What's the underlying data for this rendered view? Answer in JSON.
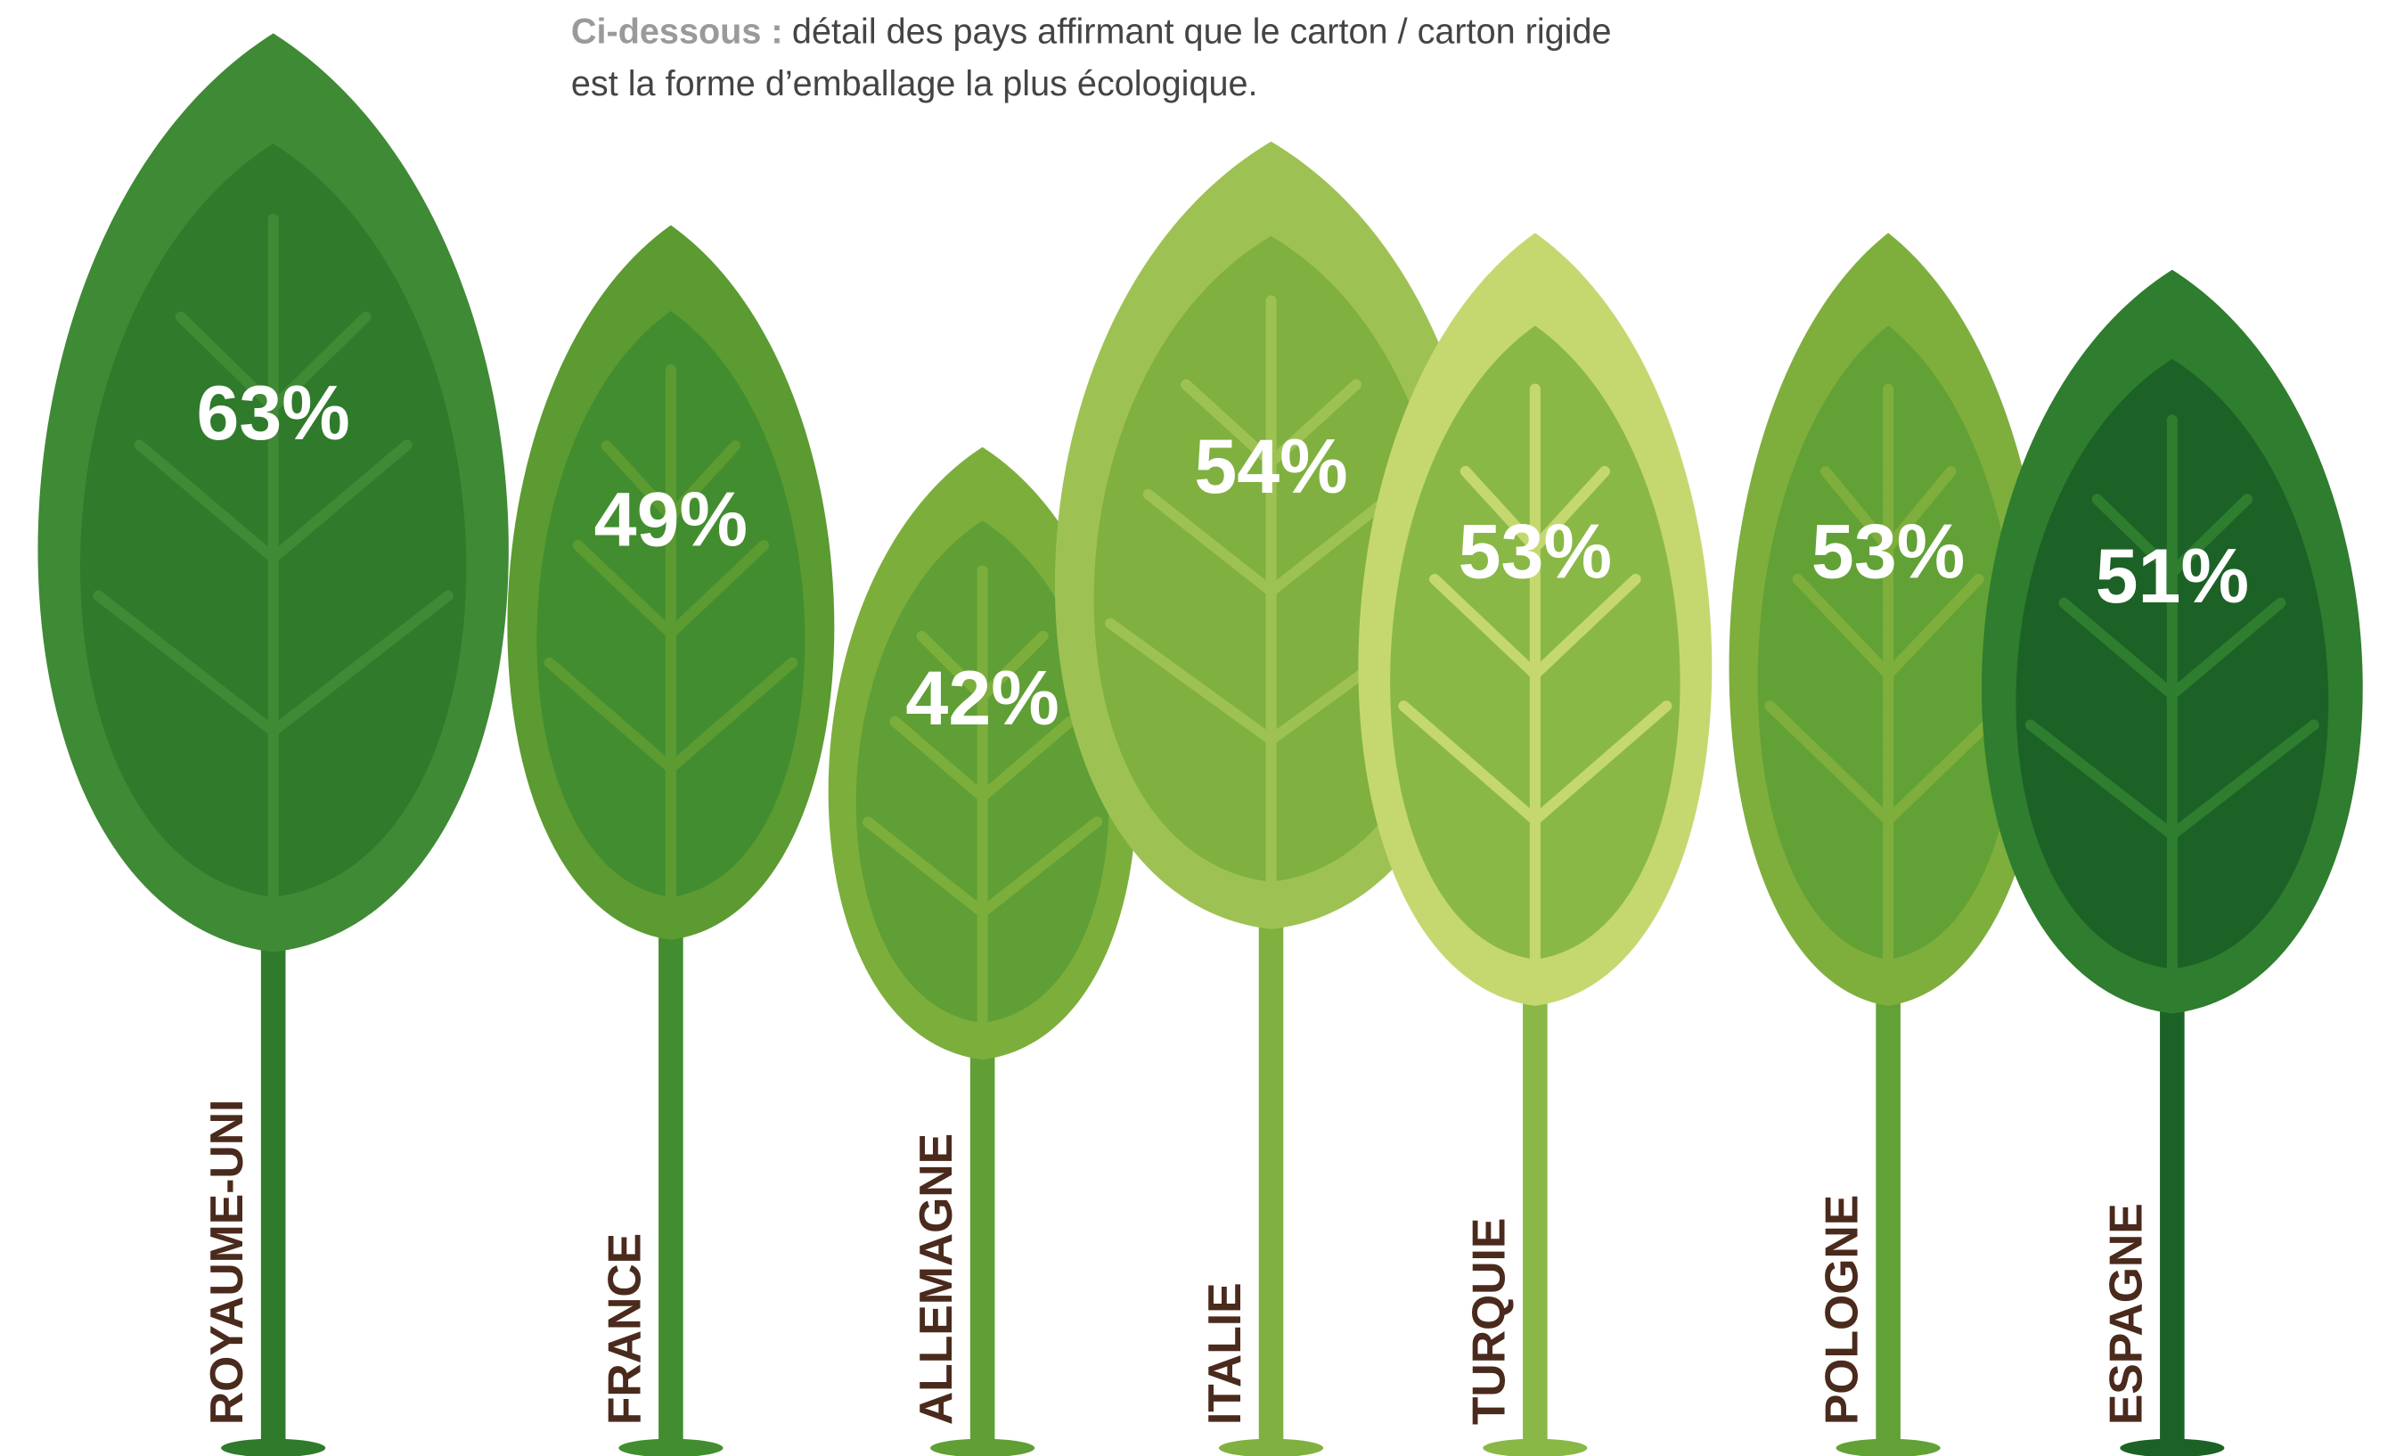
{
  "chart_data": {
    "type": "leaf",
    "subtitle_lead": "Ci-dessous :",
    "subtitle": [
      "détail des pays affirmant que le carton / carton rigide",
      "est la forme d’emballage la plus écologique."
    ],
    "categories": [
      "ROYAUME-UNI",
      "FRANCE",
      "ALLEMAGNE",
      "ITALIE",
      "TURQUIE",
      "POLOGNE",
      "ESPAGNE"
    ],
    "values": [
      63,
      49,
      42,
      54,
      53,
      53,
      51
    ],
    "value_labels": [
      "63%",
      "49%",
      "42%",
      "54%",
      "53%",
      "53%",
      "51%"
    ],
    "colors": [
      "#3f8a35",
      "#5b9b31",
      "#7cae3c",
      "#9dc253",
      "#c5d870",
      "#7eae3c",
      "#2f7d2e"
    ],
    "inner_colors": [
      "#2f7a2b",
      "#428d2f",
      "#5f9f35",
      "#80b040",
      "#8ab847",
      "#62a136",
      "#1c6227"
    ]
  }
}
